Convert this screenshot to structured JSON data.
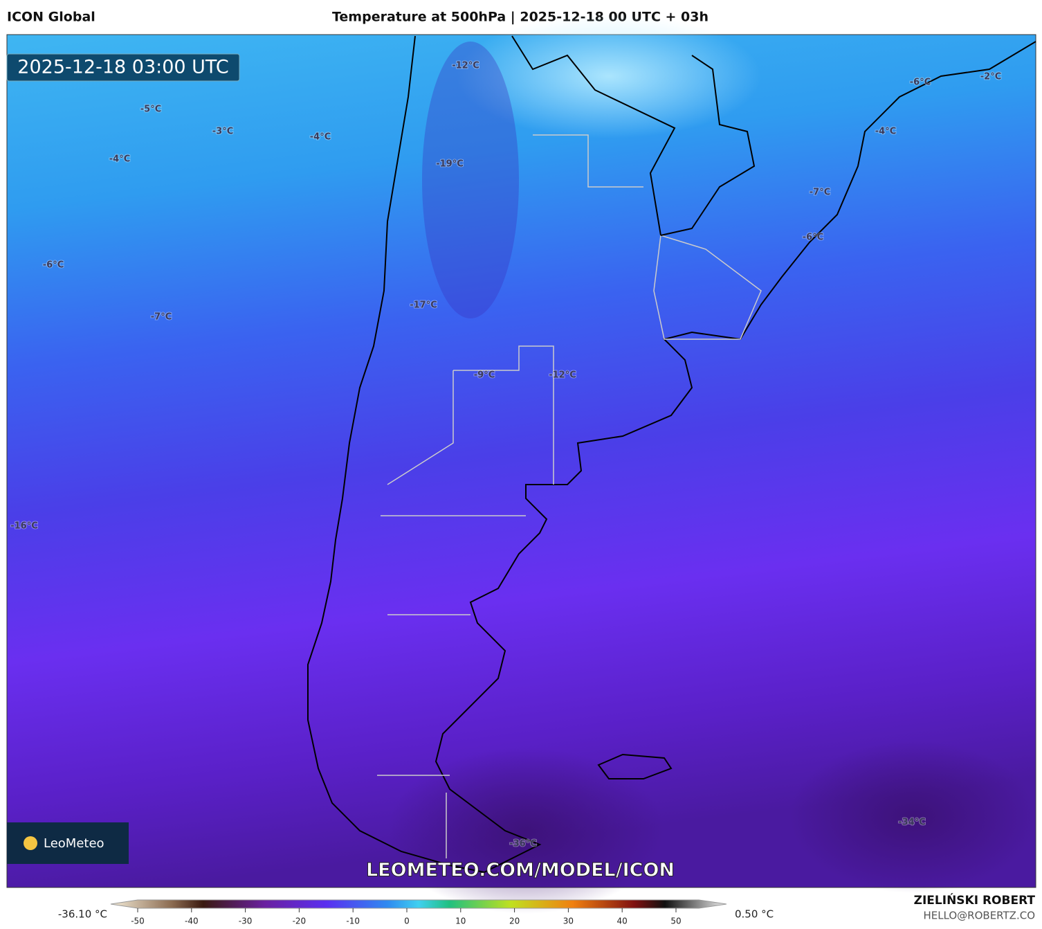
{
  "header": {
    "model": "ICON Global",
    "title": "Temperature at 500hPa | 2025-12-18 00 UTC + 03h"
  },
  "map": {
    "timestamp": "2025-12-18 03:00 UTC",
    "labels": [
      "-12°C",
      "-5°C",
      "-3°C",
      "-4°C",
      "-4°C",
      "-19°C",
      "-6°C",
      "-7°C",
      "-17°C",
      "-9°C",
      "-12°C",
      "-16°C",
      "-36°C",
      "-34°C",
      "-6°C",
      "-2°C",
      "-4°C",
      "-7°C",
      "-6°C"
    ],
    "logo": "LeoMeteo",
    "url": "LEOMETEO.COM/MODEL/ICON"
  },
  "colorbar": {
    "min_label": "-36.10 °C",
    "max_label": "0.50 °C",
    "ticks": [
      -50,
      -40,
      -30,
      -20,
      -10,
      0,
      10,
      20,
      30,
      40,
      50
    ]
  },
  "footer": {
    "author": "ZIELIŃSKI ROBERT",
    "email": "HELLO@ROBERTZ.CO"
  }
}
